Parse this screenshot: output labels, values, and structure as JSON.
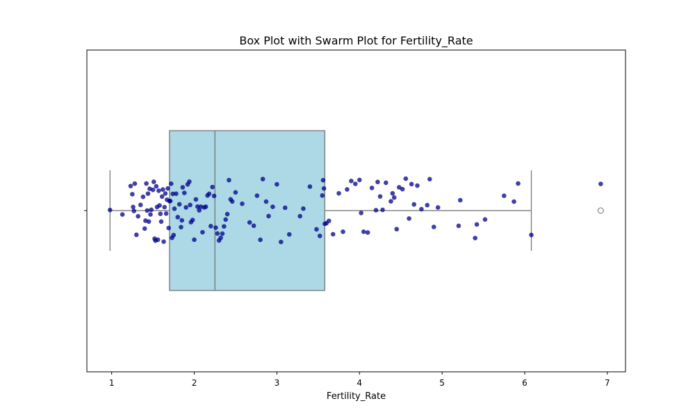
{
  "chart_data": {
    "type": "box",
    "title": "Box Plot with Swarm Plot for Fertility_Rate",
    "xlabel": "Fertility_Rate",
    "ylabel": "",
    "xlim": [
      0.7,
      7.22
    ],
    "xticks": [
      1,
      2,
      3,
      4,
      5,
      6,
      7
    ],
    "xtick_labels": [
      "1",
      "2",
      "3",
      "4",
      "5",
      "6",
      "7"
    ],
    "grid": false,
    "legend": "none",
    "colors": {
      "box_fill": "#add8e6",
      "box_edge": "#6e6e6e",
      "points": "#00008b",
      "outlier_fill": "#ffffff"
    },
    "box": {
      "min": 0.98,
      "q1": 1.7,
      "median": 2.25,
      "q3": 3.58,
      "max": 6.08,
      "outliers": [
        6.92
      ]
    },
    "points": [
      0.98,
      1.13,
      1.23,
      1.25,
      1.26,
      1.27,
      1.28,
      1.3,
      1.32,
      1.35,
      1.38,
      1.4,
      1.41,
      1.42,
      1.43,
      1.44,
      1.45,
      1.46,
      1.47,
      1.48,
      1.5,
      1.51,
      1.52,
      1.53,
      1.54,
      1.55,
      1.56,
      1.57,
      1.58,
      1.59,
      1.6,
      1.61,
      1.62,
      1.63,
      1.64,
      1.65,
      1.66,
      1.67,
      1.68,
      1.69,
      1.7,
      1.71,
      1.72,
      1.73,
      1.74,
      1.75,
      1.76,
      1.78,
      1.8,
      1.82,
      1.84,
      1.85,
      1.86,
      1.88,
      1.9,
      1.92,
      1.94,
      1.95,
      1.96,
      1.98,
      2.0,
      2.02,
      2.04,
      2.06,
      2.08,
      2.1,
      2.12,
      2.14,
      2.16,
      2.18,
      2.2,
      2.22,
      2.24,
      2.26,
      2.28,
      2.3,
      2.32,
      2.34,
      2.36,
      2.38,
      2.4,
      2.42,
      2.44,
      2.46,
      2.5,
      2.58,
      2.67,
      2.72,
      2.76,
      2.8,
      2.83,
      2.87,
      2.9,
      2.95,
      3.0,
      3.05,
      3.1,
      3.15,
      3.28,
      3.32,
      3.4,
      3.48,
      3.52,
      3.55,
      3.56,
      3.57,
      3.58,
      3.6,
      3.63,
      3.68,
      3.75,
      3.8,
      3.85,
      3.9,
      3.95,
      4.0,
      4.02,
      4.05,
      4.1,
      4.15,
      4.2,
      4.22,
      4.25,
      4.28,
      4.32,
      4.38,
      4.4,
      4.42,
      4.45,
      4.48,
      4.52,
      4.56,
      4.6,
      4.63,
      4.66,
      4.7,
      4.75,
      4.82,
      4.85,
      4.9,
      4.95,
      5.2,
      5.22,
      5.4,
      5.42,
      5.52,
      5.75,
      5.87,
      5.92,
      6.08,
      6.92
    ]
  }
}
